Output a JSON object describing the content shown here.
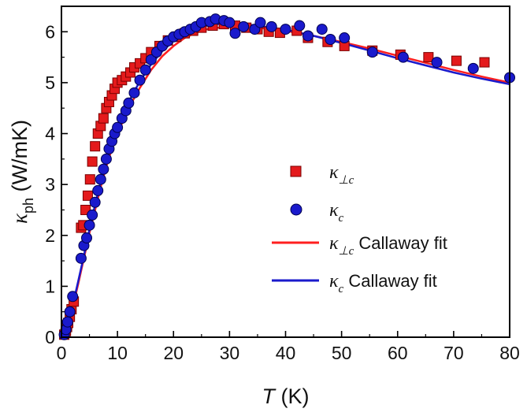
{
  "chart_data": {
    "type": "scatter",
    "title": "",
    "xlabel": {
      "main": "T",
      "unit": " (K)"
    },
    "ylabel": {
      "symbol": "κ",
      "subscript": "ph",
      "unit": " (W/mK)"
    },
    "xlim": [
      0,
      80
    ],
    "ylim": [
      0,
      6.5
    ],
    "x_ticks": [
      0,
      10,
      20,
      30,
      40,
      50,
      60,
      70,
      80
    ],
    "y_ticks": [
      0,
      1,
      2,
      3,
      4,
      5,
      6
    ],
    "grid": false,
    "legend_position": "center-right",
    "series": [
      {
        "legend_symbol": "κ",
        "legend_subscript": "⊥c",
        "legend_suffix": "",
        "kind": "scatter",
        "marker": "square",
        "color": "#e41a1c",
        "points": [
          [
            0.5,
            0.05
          ],
          [
            0.8,
            0.12
          ],
          [
            1.0,
            0.2
          ],
          [
            1.2,
            0.28
          ],
          [
            1.5,
            0.4
          ],
          [
            1.8,
            0.55
          ],
          [
            2.2,
            0.7
          ],
          [
            3.5,
            2.15
          ],
          [
            3.9,
            2.2
          ],
          [
            4.3,
            2.5
          ],
          [
            4.7,
            2.78
          ],
          [
            5.1,
            3.1
          ],
          [
            5.5,
            3.45
          ],
          [
            6.0,
            3.75
          ],
          [
            6.5,
            4.0
          ],
          [
            7.0,
            4.15
          ],
          [
            7.5,
            4.3
          ],
          [
            8.0,
            4.5
          ],
          [
            8.5,
            4.62
          ],
          [
            9.0,
            4.75
          ],
          [
            9.5,
            4.88
          ],
          [
            10.0,
            5.0
          ],
          [
            10.8,
            5.05
          ],
          [
            11.5,
            5.12
          ],
          [
            12.3,
            5.2
          ],
          [
            13.0,
            5.3
          ],
          [
            14.0,
            5.38
          ],
          [
            15.0,
            5.48
          ],
          [
            16.0,
            5.6
          ],
          [
            17.5,
            5.72
          ],
          [
            19.0,
            5.83
          ],
          [
            20.5,
            5.9
          ],
          [
            22.0,
            5.97
          ],
          [
            23.5,
            6.02
          ],
          [
            25.0,
            6.08
          ],
          [
            27.0,
            6.12
          ],
          [
            29.0,
            6.15
          ],
          [
            31.0,
            6.12
          ],
          [
            33.0,
            6.08
          ],
          [
            35.0,
            6.05
          ],
          [
            37.0,
            6.0
          ],
          [
            39.0,
            5.98
          ],
          [
            42.0,
            6.02
          ],
          [
            44.0,
            5.88
          ],
          [
            47.5,
            5.8
          ],
          [
            50.5,
            5.72
          ],
          [
            55.5,
            5.63
          ],
          [
            60.5,
            5.55
          ],
          [
            65.5,
            5.5
          ],
          [
            70.5,
            5.43
          ],
          [
            75.5,
            5.4
          ]
        ]
      },
      {
        "legend_symbol": "κ",
        "legend_subscript": "c",
        "legend_suffix": "",
        "kind": "scatter",
        "marker": "circle",
        "color": "#1a1acc",
        "points": [
          [
            0.5,
            0.05
          ],
          [
            0.8,
            0.15
          ],
          [
            1.1,
            0.3
          ],
          [
            1.5,
            0.5
          ],
          [
            2.0,
            0.8
          ],
          [
            3.5,
            1.55
          ],
          [
            4.0,
            1.8
          ],
          [
            4.5,
            1.95
          ],
          [
            5.0,
            2.2
          ],
          [
            5.5,
            2.4
          ],
          [
            6.0,
            2.65
          ],
          [
            6.5,
            2.88
          ],
          [
            7.0,
            3.1
          ],
          [
            7.5,
            3.3
          ],
          [
            8.0,
            3.5
          ],
          [
            8.5,
            3.7
          ],
          [
            9.0,
            3.85
          ],
          [
            9.5,
            4.0
          ],
          [
            10.0,
            4.12
          ],
          [
            10.8,
            4.3
          ],
          [
            11.5,
            4.45
          ],
          [
            12.0,
            4.6
          ],
          [
            13.0,
            4.8
          ],
          [
            14.0,
            5.05
          ],
          [
            15.0,
            5.25
          ],
          [
            16.0,
            5.45
          ],
          [
            17.0,
            5.6
          ],
          [
            18.0,
            5.72
          ],
          [
            19.0,
            5.82
          ],
          [
            20.0,
            5.9
          ],
          [
            21.0,
            5.95
          ],
          [
            22.0,
            6.0
          ],
          [
            23.0,
            6.05
          ],
          [
            24.0,
            6.1
          ],
          [
            25.0,
            6.18
          ],
          [
            26.5,
            6.2
          ],
          [
            27.5,
            6.25
          ],
          [
            29.0,
            6.22
          ],
          [
            30.0,
            6.18
          ],
          [
            31.0,
            5.97
          ],
          [
            32.5,
            6.1
          ],
          [
            34.5,
            6.05
          ],
          [
            35.5,
            6.18
          ],
          [
            37.5,
            6.1
          ],
          [
            40.0,
            6.05
          ],
          [
            42.5,
            6.12
          ],
          [
            44.0,
            5.92
          ],
          [
            46.5,
            6.05
          ],
          [
            48.0,
            5.85
          ],
          [
            50.5,
            5.88
          ],
          [
            55.5,
            5.6
          ],
          [
            61.0,
            5.5
          ],
          [
            67.0,
            5.4
          ],
          [
            73.5,
            5.28
          ],
          [
            80.0,
            5.1
          ]
        ]
      },
      {
        "legend_symbol": "κ",
        "legend_subscript": "⊥c",
        "legend_suffix": " Callaway fit",
        "kind": "line",
        "color": "#ff1f1f",
        "points": [
          [
            0,
            0
          ],
          [
            1,
            0.2
          ],
          [
            2,
            0.58
          ],
          [
            3,
            1.05
          ],
          [
            4,
            1.55
          ],
          [
            5,
            2.05
          ],
          [
            6,
            2.5
          ],
          [
            7,
            2.95
          ],
          [
            8,
            3.35
          ],
          [
            9,
            3.7
          ],
          [
            10,
            4.0
          ],
          [
            12,
            4.5
          ],
          [
            14,
            4.9
          ],
          [
            16,
            5.25
          ],
          [
            18,
            5.52
          ],
          [
            20,
            5.72
          ],
          [
            22,
            5.88
          ],
          [
            24,
            5.98
          ],
          [
            26,
            6.05
          ],
          [
            28,
            6.08
          ],
          [
            30,
            6.1
          ],
          [
            32,
            6.1
          ],
          [
            35,
            6.08
          ],
          [
            40,
            6.02
          ],
          [
            45,
            5.92
          ],
          [
            50,
            5.8
          ],
          [
            55,
            5.67
          ],
          [
            60,
            5.53
          ],
          [
            65,
            5.39
          ],
          [
            70,
            5.25
          ],
          [
            75,
            5.12
          ],
          [
            80,
            5.0
          ]
        ]
      },
      {
        "legend_symbol": "κ",
        "legend_subscript": "c",
        "legend_suffix": " Callaway fit",
        "kind": "line",
        "color": "#1a1acc",
        "points": [
          [
            0,
            0
          ],
          [
            1,
            0.22
          ],
          [
            2,
            0.62
          ],
          [
            3,
            1.1
          ],
          [
            4,
            1.6
          ],
          [
            5,
            2.12
          ],
          [
            6,
            2.6
          ],
          [
            7,
            3.05
          ],
          [
            8,
            3.45
          ],
          [
            9,
            3.82
          ],
          [
            10,
            4.12
          ],
          [
            12,
            4.62
          ],
          [
            14,
            5.03
          ],
          [
            16,
            5.36
          ],
          [
            18,
            5.62
          ],
          [
            20,
            5.82
          ],
          [
            22,
            5.96
          ],
          [
            24,
            6.06
          ],
          [
            26,
            6.12
          ],
          [
            28,
            6.15
          ],
          [
            30,
            6.16
          ],
          [
            32,
            6.15
          ],
          [
            35,
            6.12
          ],
          [
            40,
            6.04
          ],
          [
            45,
            5.92
          ],
          [
            50,
            5.78
          ],
          [
            55,
            5.63
          ],
          [
            60,
            5.48
          ],
          [
            65,
            5.34
          ],
          [
            70,
            5.2
          ],
          [
            75,
            5.08
          ],
          [
            80,
            4.97
          ]
        ]
      }
    ]
  }
}
